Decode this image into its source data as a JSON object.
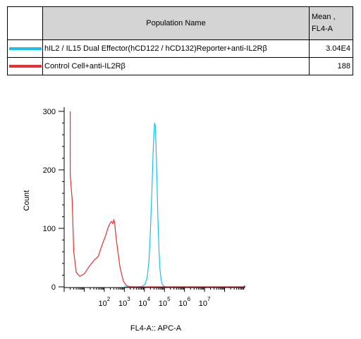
{
  "table": {
    "header": {
      "population_label": "Population Name",
      "mean_label_line1": "Mean ,",
      "mean_label_line2": "FL4-A"
    },
    "rows": [
      {
        "name": "hIL2 / IL15 Dual Effector(hCD122 / hCD132)Reporter+anti-IL2Rβ",
        "mean": "3.04E4",
        "color": "#19c0f0"
      },
      {
        "name": "Control Cell+anti-IL2Rβ",
        "mean": "188",
        "color": "#e83030"
      }
    ]
  },
  "chart_data": {
    "type": "line",
    "xlabel": "FL4-A:: APC-A",
    "ylabel": "Count",
    "xscale": "log",
    "xlim": [
      0,
      1000000000
    ],
    "ylim": [
      0,
      300
    ],
    "yticks": [
      0,
      100,
      200,
      300
    ],
    "xticks": [
      {
        "value": 100,
        "base": "10",
        "exp": "2"
      },
      {
        "value": 1000,
        "base": "10",
        "exp": "3"
      },
      {
        "value": 10000,
        "base": "10",
        "exp": "4"
      },
      {
        "value": 100000,
        "base": "10",
        "exp": "5"
      },
      {
        "value": 1000000,
        "base": "10",
        "exp": "6"
      },
      {
        "value": 10000000,
        "base": "10",
        "exp": "7"
      }
    ],
    "series": [
      {
        "name": "hIL2 / IL15 Dual Effector(hCD122 / hCD132)Reporter+anti-IL2Rβ",
        "color": "#19c0f0",
        "x": [
          1000,
          5000,
          8000,
          11000,
          14000,
          17000,
          20000,
          24000,
          27000,
          30000,
          32000,
          35000,
          38000,
          42000,
          47000,
          53000,
          60000,
          68000,
          78000,
          95000,
          130000,
          300000,
          100000000,
          1000000000
        ],
        "y": [
          0,
          0,
          1,
          5,
          17,
          45,
          95,
          170,
          225,
          262,
          280,
          275,
          240,
          185,
          120,
          65,
          30,
          12,
          4,
          1,
          0,
          0,
          0,
          0
        ]
      },
      {
        "name": "Control Cell+anti-IL2Rβ",
        "color": "#e83030",
        "x": [
          2,
          2,
          2.5,
          3,
          4,
          6,
          10,
          18,
          30,
          50,
          75,
          110,
          150,
          190,
          230,
          270,
          300,
          330,
          360,
          420,
          500,
          600,
          750,
          900,
          1100,
          1300,
          1600,
          2200,
          4000,
          100000,
          100000000,
          1000000000
        ],
        "y": [
          300,
          190,
          150,
          60,
          25,
          18,
          22,
          35,
          45,
          52,
          70,
          85,
          100,
          108,
          112,
          108,
          115,
          110,
          95,
          75,
          55,
          35,
          20,
          10,
          5,
          2,
          1,
          0,
          0,
          0,
          0,
          0
        ]
      }
    ]
  }
}
